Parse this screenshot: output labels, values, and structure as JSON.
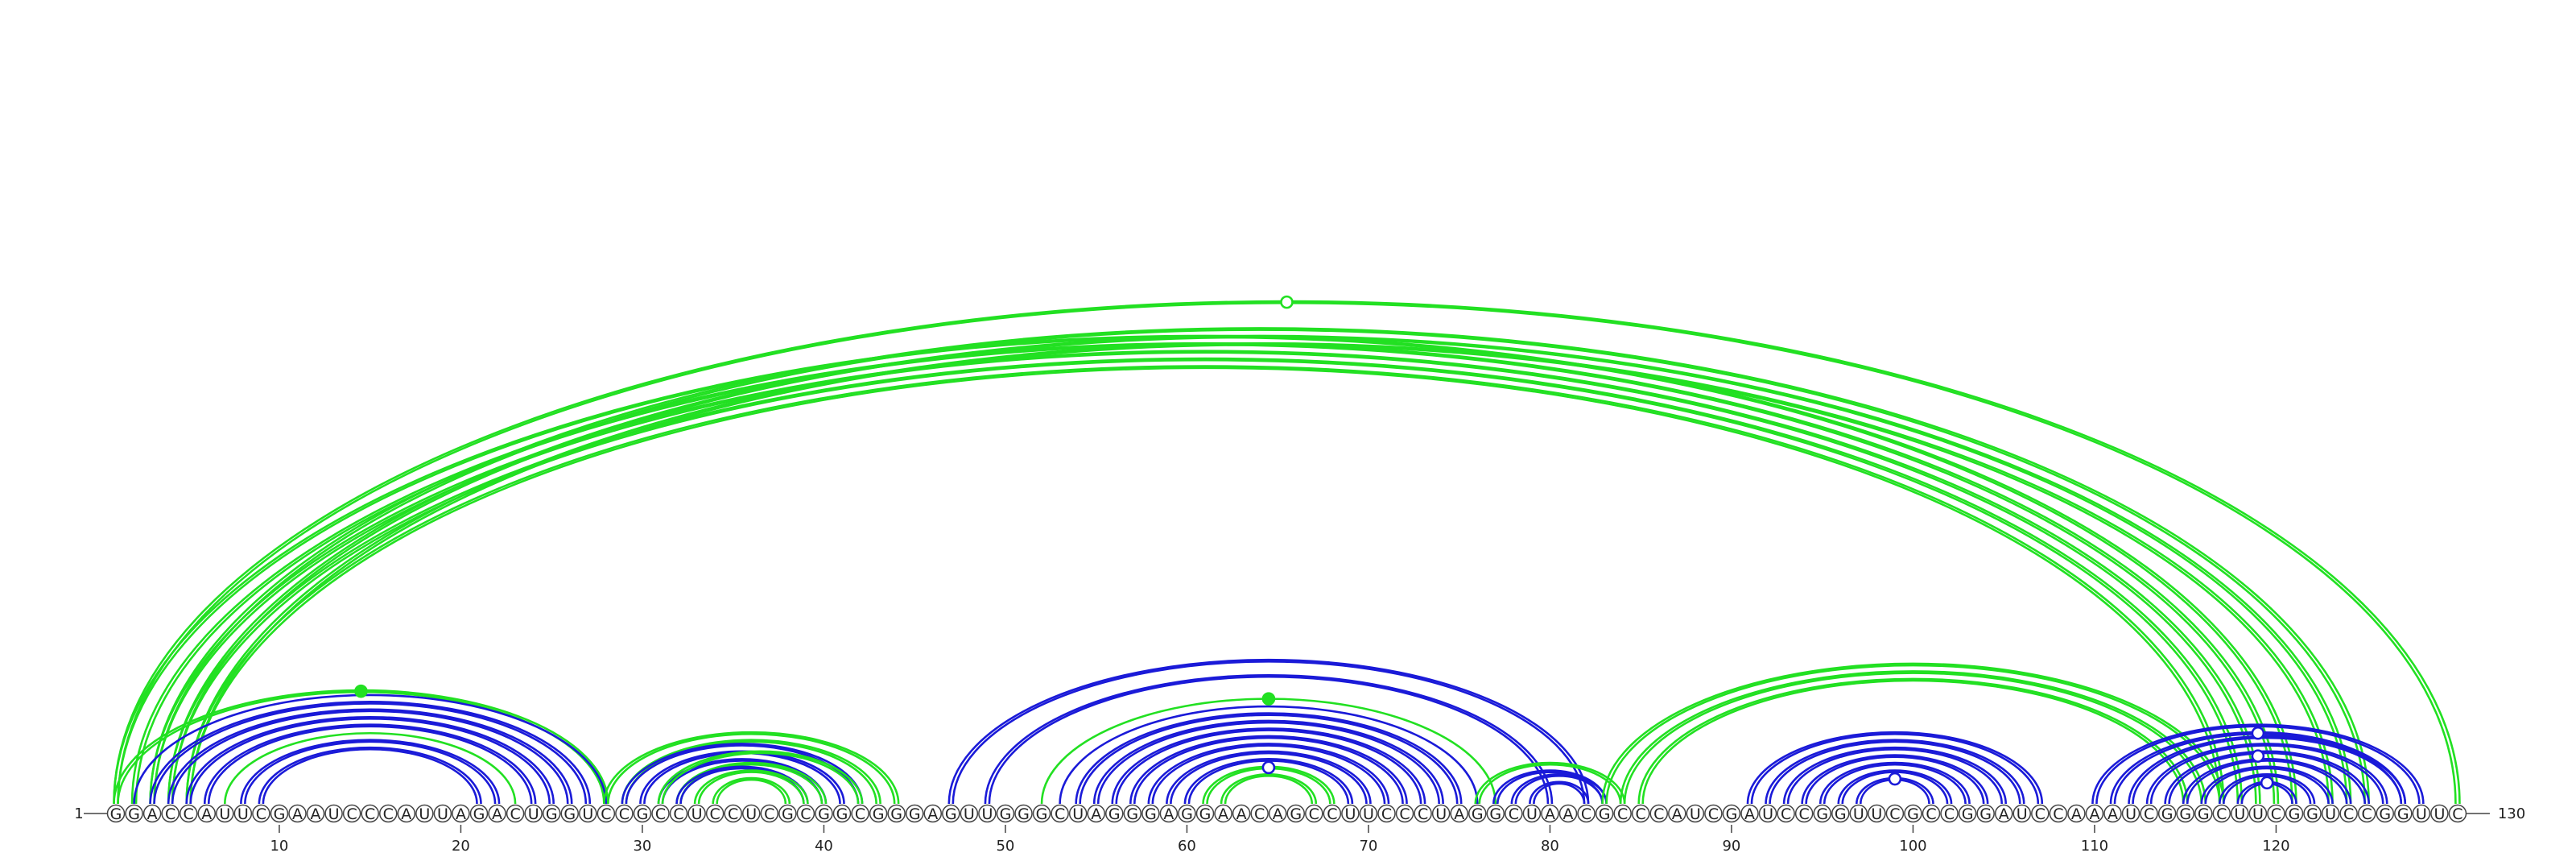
{
  "diagram": {
    "sequence": "GGACCAUUCGAAUCCCAUUAGACUGGUCCGCCUCCUCGCGGCGGGAGUUGGGCUAGGGAGGAACAGCCUUCCCUAGGCUAACGCCCAUCGAUCCGGUUCGCCGGAUCCAAAUCGGGCUUCGGUCCGGUUC",
    "length": 130,
    "start_label": "1",
    "end_label": "130",
    "ticks": [
      10,
      20,
      30,
      40,
      50,
      60,
      70,
      80,
      90,
      100,
      110,
      120
    ],
    "colors": {
      "green": "#22e022",
      "blue": "#1a1ad8",
      "outline": "#444444"
    },
    "arc_groups": [
      {
        "color": "green",
        "i": 1,
        "j": 121,
        "count": 2
      },
      {
        "color": "green",
        "i": 1,
        "j": 130,
        "count": 2
      },
      {
        "color": "green",
        "i": 2,
        "j": 120,
        "count": 2
      },
      {
        "color": "green",
        "i": 3,
        "j": 119,
        "count": 2
      },
      {
        "color": "green",
        "i": 3,
        "j": 125,
        "count": 2
      },
      {
        "color": "green",
        "i": 4,
        "j": 118,
        "count": 2
      },
      {
        "color": "green",
        "i": 4,
        "j": 124,
        "count": 2
      },
      {
        "color": "green",
        "i": 5,
        "j": 117,
        "count": 2
      },
      {
        "color": "green",
        "i": 5,
        "j": 123,
        "count": 2
      },
      {
        "color": "green",
        "i": 1,
        "j": 28,
        "count": 2
      },
      {
        "color": "blue",
        "i": 2,
        "j": 28,
        "count": 1
      },
      {
        "color": "blue",
        "i": 3,
        "j": 27,
        "count": 2
      },
      {
        "color": "blue",
        "i": 4,
        "j": 26,
        "count": 2
      },
      {
        "color": "blue",
        "i": 5,
        "j": 25,
        "count": 2
      },
      {
        "color": "blue",
        "i": 6,
        "j": 24,
        "count": 2
      },
      {
        "color": "green",
        "i": 7,
        "j": 23,
        "count": 1
      },
      {
        "color": "blue",
        "i": 8,
        "j": 22,
        "count": 2
      },
      {
        "color": "blue",
        "i": 9,
        "j": 21,
        "count": 2
      },
      {
        "color": "green",
        "i": 28,
        "j": 44,
        "count": 2
      },
      {
        "color": "green",
        "i": 29,
        "j": 43,
        "count": 2
      },
      {
        "color": "blue",
        "i": 29,
        "j": 42,
        "count": 2
      },
      {
        "color": "blue",
        "i": 30,
        "j": 41,
        "count": 2
      },
      {
        "color": "blue",
        "i": 31,
        "j": 40,
        "count": 2
      },
      {
        "color": "green",
        "i": 31,
        "j": 42,
        "count": 2
      },
      {
        "color": "green",
        "i": 32,
        "j": 40,
        "count": 2
      },
      {
        "color": "blue",
        "i": 32,
        "j": 39,
        "count": 2
      },
      {
        "color": "green",
        "i": 33,
        "j": 39,
        "count": 2
      },
      {
        "color": "green",
        "i": 34,
        "j": 38,
        "count": 2
      },
      {
        "color": "blue",
        "i": 47,
        "j": 82,
        "count": 2
      },
      {
        "color": "blue",
        "i": 49,
        "j": 80,
        "count": 2
      },
      {
        "color": "green",
        "i": 52,
        "j": 77,
        "count": 1
      },
      {
        "color": "blue",
        "i": 53,
        "j": 76,
        "count": 1
      },
      {
        "color": "blue",
        "i": 54,
        "j": 75,
        "count": 2
      },
      {
        "color": "blue",
        "i": 55,
        "j": 74,
        "count": 2
      },
      {
        "color": "blue",
        "i": 56,
        "j": 73,
        "count": 2
      },
      {
        "color": "blue",
        "i": 57,
        "j": 72,
        "count": 2
      },
      {
        "color": "blue",
        "i": 58,
        "j": 71,
        "count": 2
      },
      {
        "color": "blue",
        "i": 59,
        "j": 70,
        "count": 2
      },
      {
        "color": "blue",
        "i": 60,
        "j": 69,
        "count": 2
      },
      {
        "color": "green",
        "i": 61,
        "j": 68,
        "count": 2
      },
      {
        "color": "green",
        "i": 62,
        "j": 67,
        "count": 2
      },
      {
        "color": "green",
        "i": 76,
        "j": 84,
        "count": 2
      },
      {
        "color": "blue",
        "i": 77,
        "j": 83,
        "count": 2
      },
      {
        "color": "blue",
        "i": 78,
        "j": 83,
        "count": 2
      },
      {
        "color": "blue",
        "i": 79,
        "j": 82,
        "count": 2
      },
      {
        "color": "green",
        "i": 83,
        "j": 117,
        "count": 2
      },
      {
        "color": "green",
        "i": 84,
        "j": 116,
        "count": 2
      },
      {
        "color": "green",
        "i": 85,
        "j": 115,
        "count": 2
      },
      {
        "color": "blue",
        "i": 91,
        "j": 107,
        "count": 2
      },
      {
        "color": "blue",
        "i": 92,
        "j": 106,
        "count": 2
      },
      {
        "color": "blue",
        "i": 93,
        "j": 105,
        "count": 2
      },
      {
        "color": "blue",
        "i": 94,
        "j": 104,
        "count": 2
      },
      {
        "color": "blue",
        "i": 95,
        "j": 103,
        "count": 2
      },
      {
        "color": "blue",
        "i": 96,
        "j": 102,
        "count": 2
      },
      {
        "color": "blue",
        "i": 97,
        "j": 101,
        "count": 2
      },
      {
        "color": "blue",
        "i": 110,
        "j": 128,
        "count": 2
      },
      {
        "color": "blue",
        "i": 111,
        "j": 127,
        "count": 2
      },
      {
        "color": "blue",
        "i": 112,
        "j": 127,
        "count": 2
      },
      {
        "color": "blue",
        "i": 113,
        "j": 126,
        "count": 2
      },
      {
        "color": "blue",
        "i": 114,
        "j": 125,
        "count": 2
      },
      {
        "color": "blue",
        "i": 115,
        "j": 124,
        "count": 2
      },
      {
        "color": "blue",
        "i": 116,
        "j": 123,
        "count": 2
      },
      {
        "color": "blue",
        "i": 117,
        "j": 122,
        "count": 2
      },
      {
        "color": "blue",
        "i": 118,
        "j": 121,
        "count": 2
      }
    ],
    "markers": [
      {
        "color": "green",
        "i": 1,
        "j": 130,
        "filled": false
      },
      {
        "color": "green",
        "i": 1,
        "j": 28,
        "filled": true
      },
      {
        "color": "green",
        "i": 52,
        "j": 77,
        "filled": true
      },
      {
        "color": "blue",
        "i": 61,
        "j": 68,
        "filled": false
      },
      {
        "color": "blue",
        "i": 97,
        "j": 101,
        "filled": false
      },
      {
        "color": "blue",
        "i": 111,
        "j": 127,
        "filled": false
      },
      {
        "color": "blue",
        "i": 114,
        "j": 124,
        "filled": false
      },
      {
        "color": "blue",
        "i": 118,
        "j": 121,
        "filled": false
      }
    ]
  }
}
